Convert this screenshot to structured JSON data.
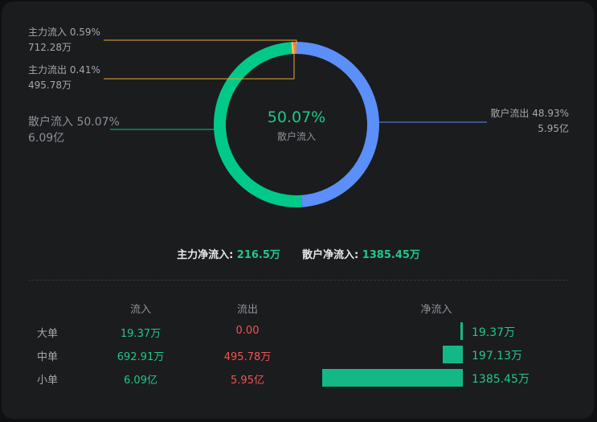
{
  "chart_data": {
    "type": "pie",
    "style": "donut",
    "center": {
      "value": "50.07%",
      "label": "散户流入"
    },
    "slices": [
      {
        "name": "散户流出",
        "percent": "48.93%",
        "amount": "5.95亿",
        "color": "#5b8ff9",
        "side": "right"
      },
      {
        "name": "散户流入",
        "percent": "50.07%",
        "amount": "6.09亿",
        "color": "#00c98a",
        "side": "left"
      },
      {
        "name": "主力流出",
        "percent": "0.41%",
        "amount": "495.78万",
        "color": "#f5c46a",
        "side": "left"
      },
      {
        "name": "主力流入",
        "percent": "0.59%",
        "amount": "712.28万",
        "color": "#f07e3a",
        "side": "left"
      }
    ]
  },
  "summary": {
    "main_label": "主力净流入:",
    "main_value": "216.5万",
    "retail_label": "散户净流入:",
    "retail_value": "1385.45万"
  },
  "table": {
    "headers": {
      "inflow": "流入",
      "outflow": "流出",
      "net": "净流入"
    },
    "rows": [
      {
        "label": "大单",
        "inflow": "19.37万",
        "outflow": "0.00",
        "net": "19.37万",
        "net_value": 19.37
      },
      {
        "label": "中单",
        "inflow": "692.91万",
        "outflow": "495.78万",
        "net": "197.13万",
        "net_value": 197.13
      },
      {
        "label": "小单",
        "inflow": "6.09亿",
        "outflow": "5.95亿",
        "net": "1385.45万",
        "net_value": 1385.45
      }
    ]
  },
  "colors": {
    "accent_green": "#20c889",
    "accent_red": "#f25454",
    "bar": "#14b886"
  }
}
